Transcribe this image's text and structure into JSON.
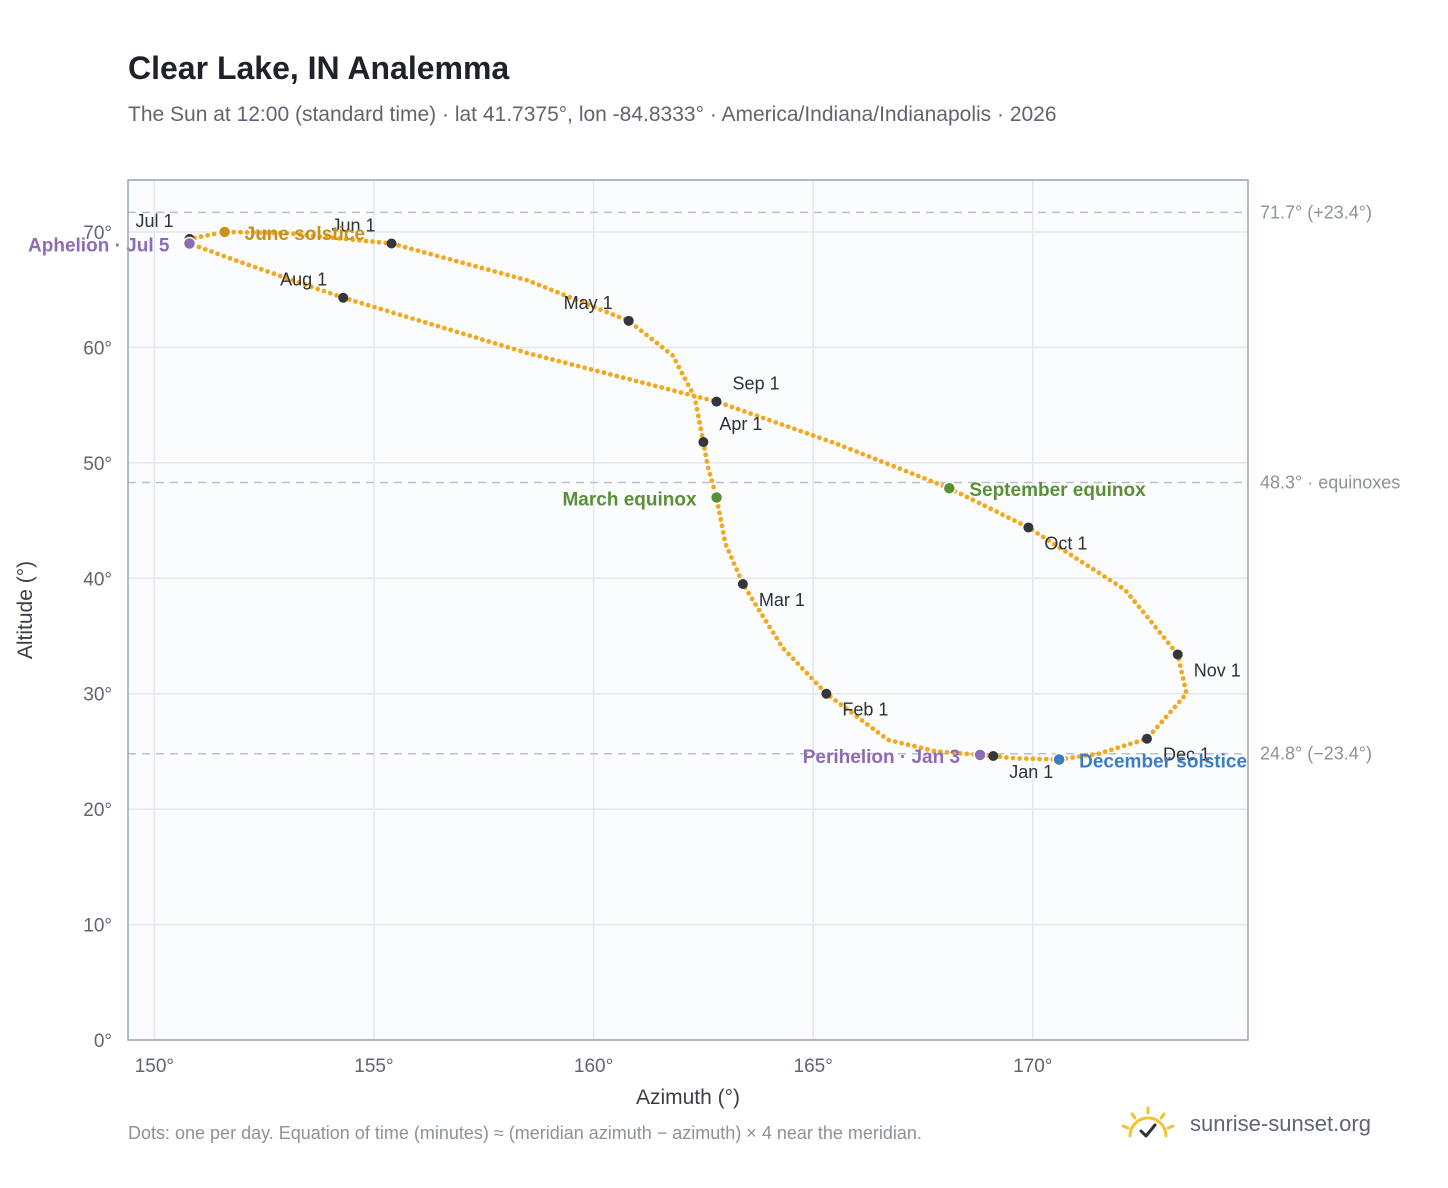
{
  "chart_data": {
    "type": "scatter",
    "title": "Clear Lake, IN Analemma",
    "subtitle": "The Sun at 12:00 (standard time) · lat 41.7375°, lon -84.8333° · America/Indiana/Indianapolis · 2026",
    "xlabel": "Azimuth (°)",
    "ylabel": "Altitude (°)",
    "xlim": [
      149.4,
      174.9
    ],
    "ylim": [
      0,
      74.5
    ],
    "xticks": [
      150,
      155,
      160,
      165,
      170
    ],
    "xtick_labels": [
      "150°",
      "155°",
      "160°",
      "165°",
      "170°"
    ],
    "yticks": [
      0,
      10,
      20,
      30,
      40,
      50,
      60,
      70
    ],
    "ytick_labels": [
      "0°",
      "10°",
      "20°",
      "30°",
      "40°",
      "50°",
      "60°",
      "70°"
    ],
    "grid": true,
    "reference_lines": [
      {
        "y": 71.7,
        "label": "71.7° (+23.4°)"
      },
      {
        "y": 48.3,
        "label": "48.3° · equinoxes"
      },
      {
        "y": 24.8,
        "label": "24.8° (−23.4°)"
      }
    ],
    "path": [
      {
        "x": 169.1,
        "y": 24.6
      },
      {
        "x": 167.8,
        "y": 25.0
      },
      {
        "x": 166.7,
        "y": 26.0
      },
      {
        "x": 165.3,
        "y": 30.0
      },
      {
        "x": 164.3,
        "y": 34.0
      },
      {
        "x": 163.4,
        "y": 39.5
      },
      {
        "x": 163.0,
        "y": 43.0
      },
      {
        "x": 162.8,
        "y": 47.0
      },
      {
        "x": 162.6,
        "y": 49.7
      },
      {
        "x": 162.5,
        "y": 51.8
      },
      {
        "x": 162.3,
        "y": 55.7
      },
      {
        "x": 161.8,
        "y": 59.3
      },
      {
        "x": 160.8,
        "y": 62.3
      },
      {
        "x": 158.5,
        "y": 65.8
      },
      {
        "x": 155.4,
        "y": 69.0
      },
      {
        "x": 153.0,
        "y": 69.9
      },
      {
        "x": 151.6,
        "y": 70.0
      },
      {
        "x": 150.8,
        "y": 69.4
      },
      {
        "x": 150.8,
        "y": 69.0
      },
      {
        "x": 151.8,
        "y": 67.6
      },
      {
        "x": 154.3,
        "y": 64.3
      },
      {
        "x": 158.5,
        "y": 59.5
      },
      {
        "x": 162.8,
        "y": 55.3
      },
      {
        "x": 165.5,
        "y": 51.7
      },
      {
        "x": 168.1,
        "y": 47.8
      },
      {
        "x": 169.9,
        "y": 44.4
      },
      {
        "x": 172.1,
        "y": 39.0
      },
      {
        "x": 173.3,
        "y": 33.4
      },
      {
        "x": 173.5,
        "y": 30.0
      },
      {
        "x": 172.6,
        "y": 26.1
      },
      {
        "x": 171.5,
        "y": 24.8
      },
      {
        "x": 170.6,
        "y": 24.3
      },
      {
        "x": 169.6,
        "y": 24.4
      },
      {
        "x": 169.1,
        "y": 24.6
      }
    ],
    "months": [
      {
        "label": "Jan 1",
        "x": 169.1,
        "y": 24.6,
        "pos": "below-right"
      },
      {
        "label": "Feb 1",
        "x": 165.3,
        "y": 30.0,
        "pos": "below-right"
      },
      {
        "label": "Mar 1",
        "x": 163.4,
        "y": 39.5,
        "pos": "below-right"
      },
      {
        "label": "Apr 1",
        "x": 162.5,
        "y": 51.8,
        "pos": "above-right"
      },
      {
        "label": "May 1",
        "x": 160.8,
        "y": 62.3,
        "pos": "above-left"
      },
      {
        "label": "Jun 1",
        "x": 155.4,
        "y": 69.0,
        "pos": "above-left"
      },
      {
        "label": "Jul 1",
        "x": 150.8,
        "y": 69.4,
        "pos": "above-left"
      },
      {
        "label": "Aug 1",
        "x": 154.3,
        "y": 64.3,
        "pos": "above-left"
      },
      {
        "label": "Sep 1",
        "x": 162.8,
        "y": 55.3,
        "pos": "above-right"
      },
      {
        "label": "Oct 1",
        "x": 169.9,
        "y": 44.4,
        "pos": "below-right"
      },
      {
        "label": "Nov 1",
        "x": 173.3,
        "y": 33.4,
        "pos": "below-right"
      },
      {
        "label": "Dec 1",
        "x": 172.6,
        "y": 26.1,
        "pos": "below-right"
      }
    ],
    "events": [
      {
        "label": "June solstice",
        "x": 151.6,
        "y": 70.0,
        "color": "#c8921a",
        "side": "right"
      },
      {
        "label": "Aphelion · Jul 5",
        "x": 150.8,
        "y": 69.0,
        "color": "#8e6bb8",
        "side": "left"
      },
      {
        "label": "March equinox",
        "x": 162.8,
        "y": 47.0,
        "color": "#5a8f36",
        "side": "left"
      },
      {
        "label": "September equinox",
        "x": 168.1,
        "y": 47.8,
        "color": "#5a8f36",
        "side": "right"
      },
      {
        "label": "Perihelion · Jan 3",
        "x": 168.8,
        "y": 24.7,
        "color": "#8e6bb8",
        "side": "left"
      },
      {
        "label": "December solstice",
        "x": 170.6,
        "y": 24.3,
        "color": "#3b7cc4",
        "side": "right"
      }
    ],
    "colors": {
      "path": "#f2a91f",
      "month_dot": "#33363c"
    }
  },
  "footnote": "Dots: one per day. Equation of time (minutes) ≈ (meridian azimuth − azimuth) × 4 near the meridian.",
  "brand": {
    "text": "sunrise-sunset.org",
    "icon": "sun-check-icon",
    "color": "#f2c232"
  }
}
